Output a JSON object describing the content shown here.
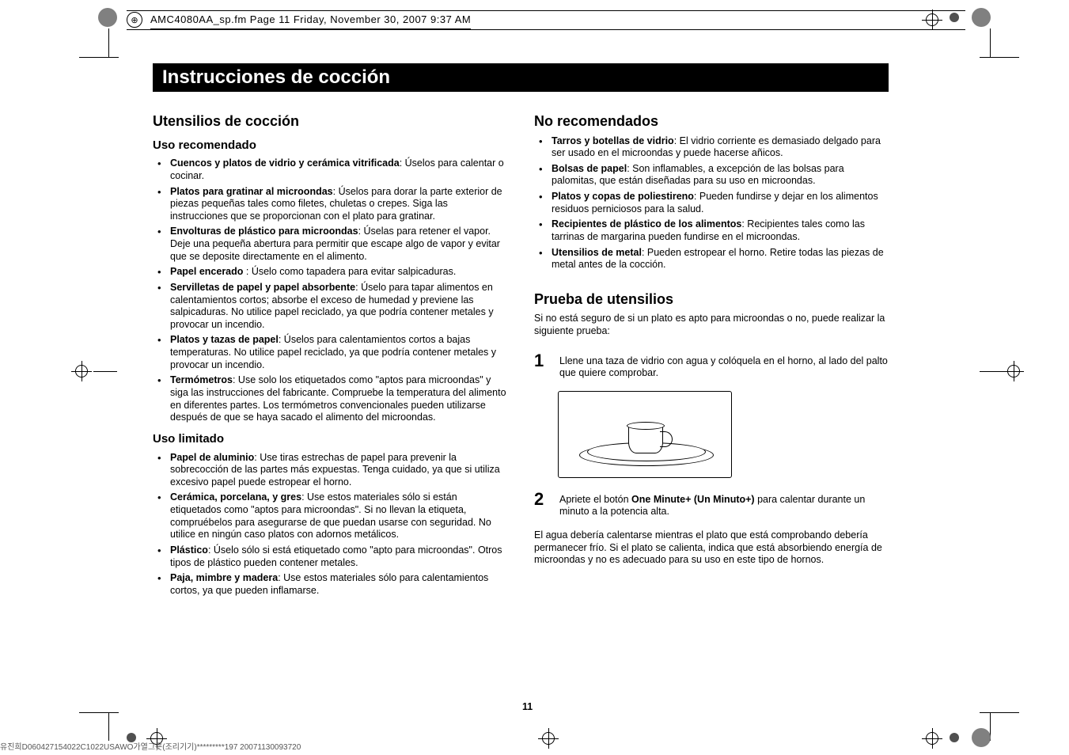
{
  "header": {
    "file_info": "AMC4080AA_sp.fm  Page 11  Friday, November 30, 2007  9:37 AM"
  },
  "title": "Instrucciones de cocción",
  "left_column": {
    "h2": "Utensilios de cocción",
    "section_a": {
      "h3": "Uso recomendado",
      "items": [
        {
          "b": "Cuencos y platos de vidrio y cerámica vitrificada",
          "t": ": Úselos para calentar o cocinar."
        },
        {
          "b": "Platos para gratinar al microondas",
          "t": ": Úselos para dorar la parte exterior de piezas pequeñas tales como filetes, chuletas o crepes. Siga las instrucciones que se proporcionan con el plato para gratinar."
        },
        {
          "b": "Envolturas de plástico para microondas",
          "t": ": Úselas para retener el vapor. Deje una pequeña abertura para permitir que escape algo de vapor y evitar que se deposite directamente en el alimento."
        },
        {
          "b": "Papel encerado ",
          "t": ": Úselo como tapadera para evitar salpicaduras."
        },
        {
          "b": "Servilletas de papel y papel absorbente",
          "t": ": Úselo para tapar alimentos en calentamientos cortos; absorbe el exceso de humedad y previene las salpicaduras. No utilice papel reciclado, ya que podría contener metales y provocar un incendio."
        },
        {
          "b": "Platos y tazas de papel",
          "t": ": Úselos para calentamientos cortos a bajas temperaturas. No utilice papel reciclado, ya que podría contener metales y provocar un incendio."
        },
        {
          "b": "Termómetros",
          "t": ": Use solo los etiquetados como \"aptos para microondas\" y siga las instrucciones del fabricante. Compruebe la temperatura del alimento en diferentes partes. Los termómetros convencionales pueden utilizarse después de que se haya sacado el alimento del microondas."
        }
      ]
    },
    "section_b": {
      "h3": "Uso limitado",
      "items": [
        {
          "b": "Papel de aluminio",
          "t": ": Use tiras estrechas de papel para prevenir la sobrecocción de las partes más expuestas. Tenga cuidado, ya que si utiliza excesivo papel puede estropear el horno."
        },
        {
          "b": "Cerámica, porcelana, y gres",
          "t": ": Use estos materiales sólo si están etiquetados como \"aptos para microondas\". Si no llevan la etiqueta, compruébelos para asegurarse de que puedan usarse con seguridad. No utilice en ningún caso platos con adornos metálicos."
        },
        {
          "b": "Plástico",
          "t": ": Úselo sólo si está etiquetado como \"apto para microondas\". Otros tipos de plástico pueden contener metales."
        },
        {
          "b": "Paja, mimbre y madera",
          "t": ": Use estos materiales sólo para calentamientos cortos, ya que pueden inflamarse."
        }
      ]
    }
  },
  "right_column": {
    "section_a": {
      "h2": "No recomendados",
      "items": [
        {
          "b": "Tarros y botellas de vidrio",
          "t": ": El vidrio corriente es demasiado delgado para ser usado en el microondas y puede hacerse añicos."
        },
        {
          "b": "Bolsas de papel",
          "t": ": Son inflamables, a excepción de las bolsas para palomitas, que están diseñadas para su uso en microondas."
        },
        {
          "b": "Platos y copas de poliestireno",
          "t": ": Pueden fundirse y dejar en los alimentos residuos perniciosos para la salud."
        },
        {
          "b": "Recipientes de plástico de los alimentos",
          "t": ": Recipientes tales como las tarrinas de margarina pueden fundirse en el microondas."
        },
        {
          "b": "Utensilios de metal",
          "t": ": Pueden estropear el horno. Retire todas las piezas de metal antes de la cocción."
        }
      ]
    },
    "section_b": {
      "h2": "Prueba de utensilios",
      "intro": "Si no está seguro de si un plato es apto para microondas o no, puede realizar la siguiente prueba:",
      "steps": [
        {
          "n": "1",
          "t": "Llene una taza de vidrio con agua y colóquela en el horno, al lado del palto que quiere comprobar."
        },
        {
          "n": "2",
          "pre": "Apriete el botón ",
          "b": "One Minute+ (Un Minuto+)",
          "post": " para calentar durante un minuto a la potencia alta."
        }
      ],
      "after": "El agua debería calentarse mientras el plato que está comprobando debería permanecer frío. Si el plato se calienta, indica que está absorbiendo energía de microondas y no es adecuado para su uso en este tipo de hornos."
    }
  },
  "page_number": "11",
  "footer": "유진희D060427154022C1022USAWO가열그릇(조리기기)*********197 20071130093720",
  "colors": {
    "title_bg": "#000000",
    "title_fg": "#ffffff",
    "text": "#000000",
    "page_bg": "#ffffff"
  }
}
